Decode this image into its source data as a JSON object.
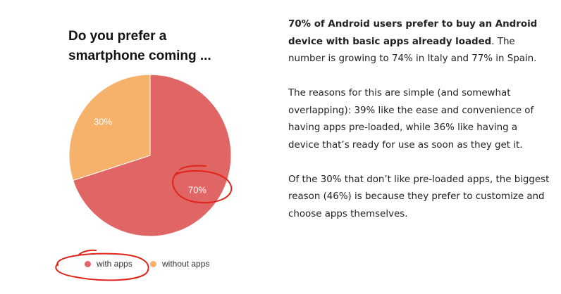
{
  "chart_data": {
    "type": "pie",
    "title": "Do you prefer a smartphone coming ...",
    "title_lines": [
      "Do you prefer a",
      "smartphone coming ..."
    ],
    "slices": [
      {
        "name": "with apps",
        "value": 70,
        "label": "70%",
        "color": "#e06666"
      },
      {
        "name": "without apps",
        "value": 30,
        "label": "30%",
        "color": "#f6b26b"
      }
    ],
    "legend_position": "bottom",
    "annotation_color": "#e0241b"
  },
  "article": {
    "p1_bold": "70% of Android users prefer to buy an Android device with basic apps already loaded",
    "p1_rest": ". The number is growing to 74% in Italy and 77% in Spain.",
    "p2": "The reasons for this are simple (and somewhat overlapping): 39% like the ease and convenience of having apps pre-loaded, while 36% like having a device that’s ready for use as soon as they get it.",
    "p3": "Of the 30% that don’t like pre-loaded apps, the biggest reason (46%) is because they prefer to customize and choose apps themselves."
  }
}
